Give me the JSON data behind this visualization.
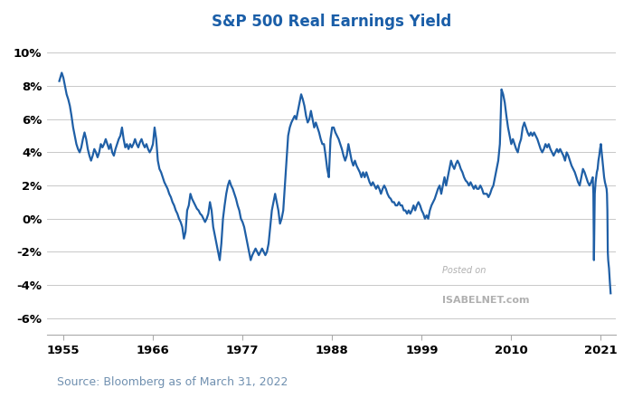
{
  "title": "S&P 500 Real Earnings Yield",
  "source_text": "Source: Bloomberg as of March 31, 2022",
  "watermark_line1": "Posted on",
  "watermark_line2": "ISABELNET.com",
  "line_color": "#1f5fa6",
  "background_color": "#ffffff",
  "grid_color": "#c8c8c8",
  "title_color": "#1a5ea8",
  "source_color": "#7090b0",
  "tick_label_color": "#000000",
  "ylim": [
    -7,
    11
  ],
  "yticks": [
    -6,
    -4,
    -2,
    0,
    2,
    4,
    6,
    8,
    10
  ],
  "ytick_labels": [
    "-6%",
    "-4%",
    "-2%",
    "0%",
    "2%",
    "4%",
    "6%",
    "8%",
    "10%"
  ],
  "xlim_start": 1953.0,
  "xlim_end": 2022.8,
  "xticks": [
    1955,
    1966,
    1977,
    1988,
    1999,
    2010,
    2021
  ],
  "line_width": 1.6,
  "data": [
    [
      1954.5,
      8.3
    ],
    [
      1954.8,
      8.8
    ],
    [
      1955.0,
      8.5
    ],
    [
      1955.2,
      8.0
    ],
    [
      1955.4,
      7.5
    ],
    [
      1955.6,
      7.2
    ],
    [
      1955.8,
      6.8
    ],
    [
      1956.0,
      6.2
    ],
    [
      1956.2,
      5.5
    ],
    [
      1956.4,
      5.0
    ],
    [
      1956.6,
      4.5
    ],
    [
      1956.8,
      4.2
    ],
    [
      1957.0,
      4.0
    ],
    [
      1957.2,
      4.3
    ],
    [
      1957.4,
      4.8
    ],
    [
      1957.6,
      5.2
    ],
    [
      1957.8,
      4.8
    ],
    [
      1958.0,
      4.2
    ],
    [
      1958.2,
      3.8
    ],
    [
      1958.4,
      3.5
    ],
    [
      1958.6,
      3.8
    ],
    [
      1958.8,
      4.2
    ],
    [
      1959.0,
      4.0
    ],
    [
      1959.2,
      3.7
    ],
    [
      1959.4,
      4.0
    ],
    [
      1959.6,
      4.5
    ],
    [
      1959.8,
      4.3
    ],
    [
      1960.0,
      4.5
    ],
    [
      1960.2,
      4.8
    ],
    [
      1960.4,
      4.5
    ],
    [
      1960.6,
      4.2
    ],
    [
      1960.8,
      4.5
    ],
    [
      1961.0,
      4.0
    ],
    [
      1961.2,
      3.8
    ],
    [
      1961.4,
      4.2
    ],
    [
      1961.6,
      4.5
    ],
    [
      1961.8,
      4.8
    ],
    [
      1962.0,
      5.0
    ],
    [
      1962.2,
      5.5
    ],
    [
      1962.4,
      4.8
    ],
    [
      1962.6,
      4.3
    ],
    [
      1962.8,
      4.5
    ],
    [
      1963.0,
      4.2
    ],
    [
      1963.2,
      4.5
    ],
    [
      1963.4,
      4.3
    ],
    [
      1963.6,
      4.5
    ],
    [
      1963.8,
      4.8
    ],
    [
      1964.0,
      4.5
    ],
    [
      1964.2,
      4.3
    ],
    [
      1964.4,
      4.6
    ],
    [
      1964.6,
      4.8
    ],
    [
      1964.8,
      4.5
    ],
    [
      1965.0,
      4.3
    ],
    [
      1965.2,
      4.5
    ],
    [
      1965.4,
      4.2
    ],
    [
      1965.6,
      4.0
    ],
    [
      1965.8,
      4.2
    ],
    [
      1966.0,
      4.5
    ],
    [
      1966.2,
      5.5
    ],
    [
      1966.4,
      4.8
    ],
    [
      1966.6,
      3.5
    ],
    [
      1966.8,
      3.0
    ],
    [
      1967.0,
      2.8
    ],
    [
      1967.2,
      2.5
    ],
    [
      1967.4,
      2.2
    ],
    [
      1967.6,
      2.0
    ],
    [
      1967.8,
      1.8
    ],
    [
      1968.0,
      1.5
    ],
    [
      1968.2,
      1.3
    ],
    [
      1968.4,
      1.0
    ],
    [
      1968.6,
      0.8
    ],
    [
      1968.8,
      0.5
    ],
    [
      1969.0,
      0.3
    ],
    [
      1969.2,
      0.0
    ],
    [
      1969.4,
      -0.2
    ],
    [
      1969.6,
      -0.5
    ],
    [
      1969.8,
      -1.2
    ],
    [
      1970.0,
      -0.8
    ],
    [
      1970.2,
      0.5
    ],
    [
      1970.4,
      0.8
    ],
    [
      1970.6,
      1.5
    ],
    [
      1970.8,
      1.2
    ],
    [
      1971.0,
      1.0
    ],
    [
      1971.2,
      0.8
    ],
    [
      1971.4,
      0.6
    ],
    [
      1971.6,
      0.5
    ],
    [
      1971.8,
      0.3
    ],
    [
      1972.0,
      0.2
    ],
    [
      1972.2,
      0.0
    ],
    [
      1972.4,
      -0.2
    ],
    [
      1972.6,
      0.0
    ],
    [
      1972.8,
      0.3
    ],
    [
      1973.0,
      1.0
    ],
    [
      1973.2,
      0.5
    ],
    [
      1973.4,
      -0.5
    ],
    [
      1973.6,
      -1.0
    ],
    [
      1973.8,
      -1.5
    ],
    [
      1974.0,
      -2.0
    ],
    [
      1974.2,
      -2.5
    ],
    [
      1974.4,
      -1.5
    ],
    [
      1974.6,
      0.0
    ],
    [
      1974.8,
      0.8
    ],
    [
      1975.0,
      1.5
    ],
    [
      1975.2,
      2.0
    ],
    [
      1975.4,
      2.3
    ],
    [
      1975.6,
      2.0
    ],
    [
      1975.8,
      1.8
    ],
    [
      1976.0,
      1.5
    ],
    [
      1976.2,
      1.2
    ],
    [
      1976.4,
      0.8
    ],
    [
      1976.6,
      0.5
    ],
    [
      1976.8,
      0.0
    ],
    [
      1977.0,
      -0.2
    ],
    [
      1977.2,
      -0.5
    ],
    [
      1977.4,
      -1.0
    ],
    [
      1977.6,
      -1.5
    ],
    [
      1977.8,
      -2.0
    ],
    [
      1978.0,
      -2.5
    ],
    [
      1978.2,
      -2.2
    ],
    [
      1978.4,
      -2.0
    ],
    [
      1978.6,
      -1.8
    ],
    [
      1978.8,
      -2.0
    ],
    [
      1979.0,
      -2.2
    ],
    [
      1979.2,
      -2.0
    ],
    [
      1979.4,
      -1.8
    ],
    [
      1979.6,
      -2.0
    ],
    [
      1979.8,
      -2.2
    ],
    [
      1980.0,
      -2.0
    ],
    [
      1980.2,
      -1.5
    ],
    [
      1980.4,
      -0.5
    ],
    [
      1980.6,
      0.5
    ],
    [
      1980.8,
      1.0
    ],
    [
      1981.0,
      1.5
    ],
    [
      1981.2,
      1.0
    ],
    [
      1981.4,
      0.5
    ],
    [
      1981.6,
      -0.3
    ],
    [
      1981.8,
      0.0
    ],
    [
      1982.0,
      0.5
    ],
    [
      1982.2,
      2.0
    ],
    [
      1982.4,
      3.5
    ],
    [
      1982.6,
      5.0
    ],
    [
      1982.8,
      5.5
    ],
    [
      1983.0,
      5.8
    ],
    [
      1983.2,
      6.0
    ],
    [
      1983.4,
      6.2
    ],
    [
      1983.6,
      6.0
    ],
    [
      1983.8,
      6.5
    ],
    [
      1984.0,
      7.0
    ],
    [
      1984.2,
      7.5
    ],
    [
      1984.4,
      7.2
    ],
    [
      1984.6,
      6.8
    ],
    [
      1984.8,
      6.2
    ],
    [
      1985.0,
      5.8
    ],
    [
      1985.2,
      6.0
    ],
    [
      1985.4,
      6.5
    ],
    [
      1985.6,
      6.0
    ],
    [
      1985.8,
      5.5
    ],
    [
      1986.0,
      5.8
    ],
    [
      1986.2,
      5.5
    ],
    [
      1986.4,
      5.2
    ],
    [
      1986.6,
      4.8
    ],
    [
      1986.8,
      4.5
    ],
    [
      1987.0,
      4.5
    ],
    [
      1987.2,
      3.8
    ],
    [
      1987.4,
      3.0
    ],
    [
      1987.6,
      2.5
    ],
    [
      1987.8,
      4.8
    ],
    [
      1988.0,
      5.5
    ],
    [
      1988.2,
      5.5
    ],
    [
      1988.4,
      5.2
    ],
    [
      1988.6,
      5.0
    ],
    [
      1988.8,
      4.8
    ],
    [
      1989.0,
      4.5
    ],
    [
      1989.2,
      4.2
    ],
    [
      1989.4,
      3.8
    ],
    [
      1989.6,
      3.5
    ],
    [
      1989.8,
      3.8
    ],
    [
      1990.0,
      4.5
    ],
    [
      1990.2,
      4.0
    ],
    [
      1990.4,
      3.5
    ],
    [
      1990.6,
      3.2
    ],
    [
      1990.8,
      3.5
    ],
    [
      1991.0,
      3.2
    ],
    [
      1991.2,
      3.0
    ],
    [
      1991.4,
      2.8
    ],
    [
      1991.6,
      2.5
    ],
    [
      1991.8,
      2.8
    ],
    [
      1992.0,
      2.5
    ],
    [
      1992.2,
      2.8
    ],
    [
      1992.4,
      2.5
    ],
    [
      1992.6,
      2.2
    ],
    [
      1992.8,
      2.0
    ],
    [
      1993.0,
      2.2
    ],
    [
      1993.2,
      2.0
    ],
    [
      1993.4,
      1.8
    ],
    [
      1993.6,
      2.0
    ],
    [
      1993.8,
      1.8
    ],
    [
      1994.0,
      1.5
    ],
    [
      1994.2,
      1.8
    ],
    [
      1994.4,
      2.0
    ],
    [
      1994.6,
      1.8
    ],
    [
      1994.8,
      1.5
    ],
    [
      1995.0,
      1.3
    ],
    [
      1995.2,
      1.2
    ],
    [
      1995.4,
      1.0
    ],
    [
      1995.6,
      1.0
    ],
    [
      1995.8,
      0.8
    ],
    [
      1996.0,
      0.8
    ],
    [
      1996.2,
      1.0
    ],
    [
      1996.4,
      0.8
    ],
    [
      1996.6,
      0.8
    ],
    [
      1996.8,
      0.5
    ],
    [
      1997.0,
      0.5
    ],
    [
      1997.2,
      0.3
    ],
    [
      1997.4,
      0.5
    ],
    [
      1997.6,
      0.3
    ],
    [
      1997.8,
      0.5
    ],
    [
      1998.0,
      0.8
    ],
    [
      1998.2,
      0.5
    ],
    [
      1998.4,
      0.8
    ],
    [
      1998.6,
      1.0
    ],
    [
      1998.8,
      0.8
    ],
    [
      1999.0,
      0.5
    ],
    [
      1999.2,
      0.3
    ],
    [
      1999.4,
      0.0
    ],
    [
      1999.6,
      0.2
    ],
    [
      1999.8,
      0.0
    ],
    [
      2000.0,
      0.5
    ],
    [
      2000.2,
      0.8
    ],
    [
      2000.4,
      1.0
    ],
    [
      2000.6,
      1.2
    ],
    [
      2000.8,
      1.5
    ],
    [
      2001.0,
      1.8
    ],
    [
      2001.2,
      2.0
    ],
    [
      2001.4,
      1.5
    ],
    [
      2001.6,
      2.0
    ],
    [
      2001.8,
      2.5
    ],
    [
      2002.0,
      2.0
    ],
    [
      2002.2,
      2.5
    ],
    [
      2002.4,
      3.0
    ],
    [
      2002.6,
      3.5
    ],
    [
      2002.8,
      3.2
    ],
    [
      2003.0,
      3.0
    ],
    [
      2003.2,
      3.3
    ],
    [
      2003.4,
      3.5
    ],
    [
      2003.6,
      3.3
    ],
    [
      2003.8,
      3.0
    ],
    [
      2004.0,
      2.8
    ],
    [
      2004.2,
      2.5
    ],
    [
      2004.4,
      2.3
    ],
    [
      2004.6,
      2.2
    ],
    [
      2004.8,
      2.0
    ],
    [
      2005.0,
      2.2
    ],
    [
      2005.2,
      2.0
    ],
    [
      2005.4,
      1.8
    ],
    [
      2005.6,
      2.0
    ],
    [
      2005.8,
      1.8
    ],
    [
      2006.0,
      1.8
    ],
    [
      2006.2,
      2.0
    ],
    [
      2006.4,
      1.8
    ],
    [
      2006.6,
      1.5
    ],
    [
      2006.8,
      1.5
    ],
    [
      2007.0,
      1.5
    ],
    [
      2007.2,
      1.3
    ],
    [
      2007.4,
      1.5
    ],
    [
      2007.6,
      1.8
    ],
    [
      2007.8,
      2.0
    ],
    [
      2008.0,
      2.5
    ],
    [
      2008.2,
      3.0
    ],
    [
      2008.4,
      3.5
    ],
    [
      2008.6,
      4.5
    ],
    [
      2008.8,
      7.8
    ],
    [
      2009.0,
      7.5
    ],
    [
      2009.2,
      7.0
    ],
    [
      2009.4,
      6.2
    ],
    [
      2009.6,
      5.5
    ],
    [
      2009.8,
      5.0
    ],
    [
      2010.0,
      4.5
    ],
    [
      2010.2,
      4.8
    ],
    [
      2010.4,
      4.5
    ],
    [
      2010.6,
      4.2
    ],
    [
      2010.8,
      4.0
    ],
    [
      2011.0,
      4.5
    ],
    [
      2011.2,
      4.8
    ],
    [
      2011.4,
      5.5
    ],
    [
      2011.6,
      5.8
    ],
    [
      2011.8,
      5.5
    ],
    [
      2012.0,
      5.2
    ],
    [
      2012.2,
      5.0
    ],
    [
      2012.4,
      5.2
    ],
    [
      2012.6,
      5.0
    ],
    [
      2012.8,
      5.2
    ],
    [
      2013.0,
      5.0
    ],
    [
      2013.2,
      4.8
    ],
    [
      2013.4,
      4.5
    ],
    [
      2013.6,
      4.2
    ],
    [
      2013.8,
      4.0
    ],
    [
      2014.0,
      4.2
    ],
    [
      2014.2,
      4.5
    ],
    [
      2014.4,
      4.3
    ],
    [
      2014.6,
      4.5
    ],
    [
      2014.8,
      4.2
    ],
    [
      2015.0,
      4.0
    ],
    [
      2015.2,
      3.8
    ],
    [
      2015.4,
      4.0
    ],
    [
      2015.6,
      4.2
    ],
    [
      2015.8,
      4.0
    ],
    [
      2016.0,
      4.2
    ],
    [
      2016.2,
      4.0
    ],
    [
      2016.4,
      3.8
    ],
    [
      2016.6,
      3.5
    ],
    [
      2016.8,
      4.0
    ],
    [
      2017.0,
      3.8
    ],
    [
      2017.2,
      3.5
    ],
    [
      2017.4,
      3.2
    ],
    [
      2017.6,
      3.0
    ],
    [
      2017.8,
      2.8
    ],
    [
      2018.0,
      2.5
    ],
    [
      2018.2,
      2.2
    ],
    [
      2018.4,
      2.0
    ],
    [
      2018.6,
      2.5
    ],
    [
      2018.8,
      3.0
    ],
    [
      2019.0,
      2.8
    ],
    [
      2019.2,
      2.5
    ],
    [
      2019.4,
      2.2
    ],
    [
      2019.6,
      2.0
    ],
    [
      2019.8,
      2.2
    ],
    [
      2020.0,
      2.5
    ],
    [
      2020.08,
      1.5
    ],
    [
      2020.15,
      -2.5
    ],
    [
      2020.25,
      1.5
    ],
    [
      2020.35,
      2.2
    ],
    [
      2020.5,
      2.8
    ],
    [
      2020.6,
      3.0
    ],
    [
      2020.7,
      3.5
    ],
    [
      2020.8,
      3.8
    ],
    [
      2020.9,
      4.2
    ],
    [
      2021.0,
      4.5
    ],
    [
      2021.1,
      4.0
    ],
    [
      2021.2,
      3.5
    ],
    [
      2021.3,
      3.0
    ],
    [
      2021.4,
      2.5
    ],
    [
      2021.5,
      2.2
    ],
    [
      2021.6,
      2.0
    ],
    [
      2021.7,
      1.8
    ],
    [
      2021.75,
      1.5
    ],
    [
      2021.8,
      0.5
    ],
    [
      2021.85,
      -2.0
    ],
    [
      2021.9,
      -2.5
    ],
    [
      2022.0,
      -3.0
    ],
    [
      2022.1,
      -3.8
    ],
    [
      2022.2,
      -4.5
    ]
  ]
}
